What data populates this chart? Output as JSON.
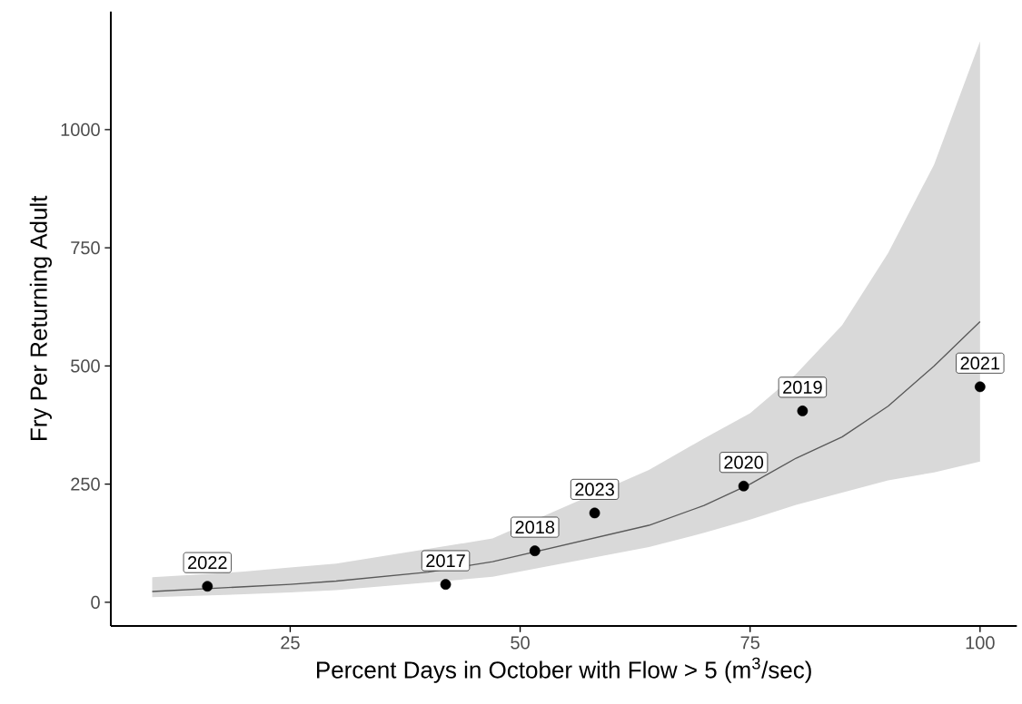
{
  "chart_data": {
    "type": "scatter",
    "xlabel": "Percent Days in October with Flow > 5 (m$^{3}$/sec)",
    "ylabel": "Fry Per Returning Adult",
    "xlim": [
      5.5,
      104
    ],
    "ylim": [
      -50,
      1250
    ],
    "xticks": [
      25,
      50,
      75,
      100
    ],
    "yticks": [
      0,
      250,
      500,
      750,
      1000
    ],
    "grid": false,
    "series": [
      {
        "type": "line",
        "color": "#595959",
        "marker": "none",
        "x": [
          10,
          20,
          25,
          30,
          40,
          47,
          64,
          70,
          75,
          80,
          85,
          90,
          95,
          100
        ],
        "values": [
          23,
          33,
          38,
          45,
          64,
          86,
          163,
          205,
          250,
          305,
          350,
          415,
          500,
          594
        ],
        "lower": [
          11,
          17,
          21,
          26,
          42,
          54,
          117,
          147,
          175,
          206,
          232,
          258,
          275,
          298
        ],
        "upper": [
          53,
          65,
          74,
          82,
          113,
          135,
          280,
          347,
          400,
          483,
          586,
          739,
          926,
          1187
        ]
      },
      {
        "color": "#000000",
        "marker": "circle",
        "x": [
          16,
          41.9,
          51.6,
          58.1,
          74.3,
          80.7,
          100
        ],
        "values": [
          34,
          38,
          109,
          189,
          246,
          405,
          456
        ]
      }
    ],
    "annotations": [
      {
        "text": "2022",
        "x": 16,
        "y": 34
      },
      {
        "text": "2017",
        "x": 41.9,
        "y": 38
      },
      {
        "text": "2018",
        "x": 51.6,
        "y": 109
      },
      {
        "text": "2023",
        "x": 58.1,
        "y": 189
      },
      {
        "text": "2020",
        "x": 74.3,
        "y": 246
      },
      {
        "text": "2019",
        "x": 80.7,
        "y": 405
      },
      {
        "text": "2021",
        "x": 100,
        "y": 456
      }
    ]
  }
}
